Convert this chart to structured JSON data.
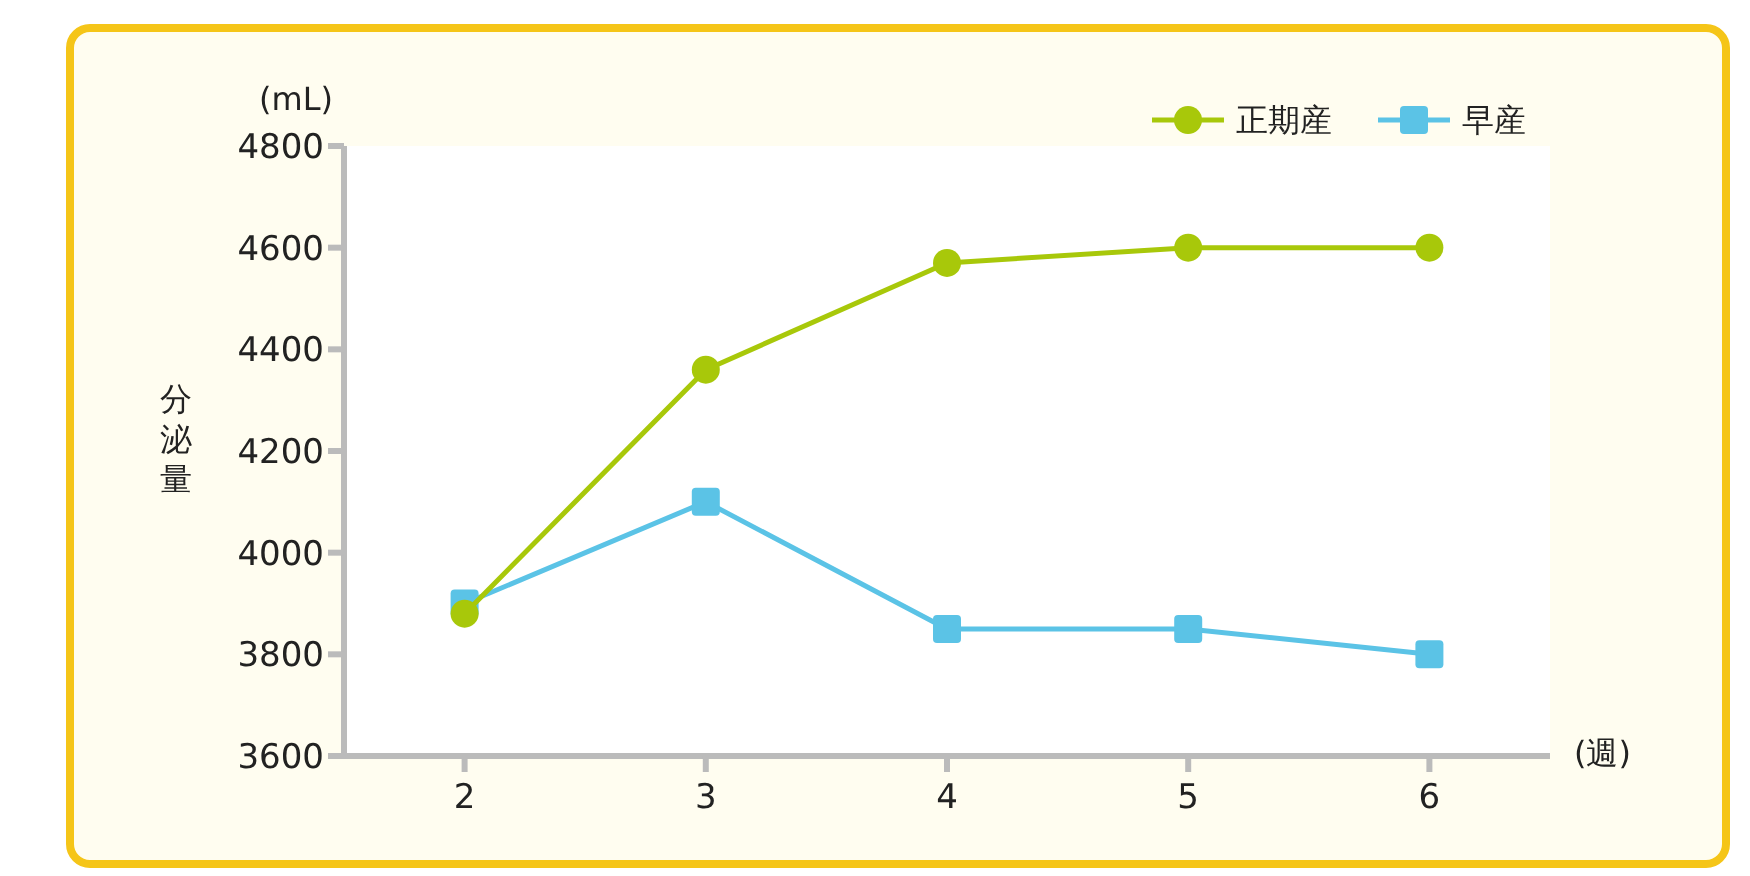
{
  "chart_data": {
    "type": "line",
    "xlabel": "(週)",
    "ylabel": "分泌量",
    "annotations": [
      "(mL)"
    ],
    "x": [
      2,
      3,
      4,
      5,
      6
    ],
    "xlim": [
      1.5,
      6.5
    ],
    "xticks": [
      2,
      3,
      4,
      5,
      6
    ],
    "ylim": [
      3600,
      4800
    ],
    "yticks": [
      3600,
      3800,
      4000,
      4200,
      4400,
      4600,
      4800
    ],
    "grid": false,
    "legend": "top right",
    "line_style": "solid",
    "series": [
      {
        "name": "正期産",
        "color": "#a8c80a",
        "marker": "circle",
        "values": [
          3880,
          4360,
          4570,
          4600,
          4600
        ]
      },
      {
        "name": "早産",
        "color": "#5bc3e6",
        "marker": "square",
        "values": [
          3900,
          4100,
          3850,
          3850,
          3800
        ]
      }
    ]
  }
}
